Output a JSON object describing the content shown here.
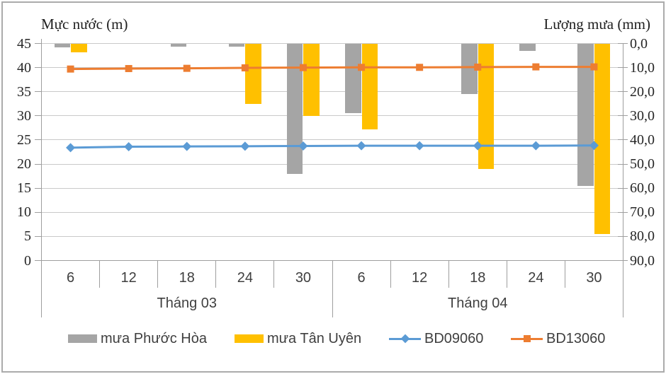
{
  "titles": {
    "left_axis": "Mực nước (m)",
    "right_axis": "Lượng mưa (mm)"
  },
  "left_axis_ticks": [
    "45",
    "40",
    "35",
    "30",
    "25",
    "20",
    "15",
    "10",
    "5",
    "0"
  ],
  "right_axis_ticks": [
    "0,0",
    "10,0",
    "20,0",
    "30,0",
    "40,0",
    "50,0",
    "60,0",
    "70,0",
    "80,0",
    "90,0"
  ],
  "colors": {
    "grid": "#C9C9C9",
    "axis": "#9E9E9E",
    "frame": "#ABABAB"
  },
  "chart_data": {
    "type": "bar+line combo, dual axis",
    "categories": [
      "6",
      "12",
      "18",
      "24",
      "30",
      "6",
      "12",
      "18",
      "24",
      "30"
    ],
    "category_groups": [
      {
        "label": "Tháng 03",
        "span": 5
      },
      {
        "label": "Tháng 04",
        "span": 5
      }
    ],
    "left_ylim": [
      0,
      45
    ],
    "left_tick_step": 5,
    "right_ylim": [
      0,
      90
    ],
    "right_tick_step": 10,
    "right_axis_inverted": true,
    "grid": true,
    "legend_position": "bottom",
    "bar_series": [
      {
        "id": "phuoc-hoa",
        "name": "mưa Phước Hòa",
        "axis": "right",
        "unit": "mm",
        "color": "#A5A5A5",
        "values": [
          1.5,
          0,
          1.2,
          1.4,
          54,
          29,
          0,
          21,
          3,
          59
        ]
      },
      {
        "id": "tan-uyen",
        "name": "mưa Tân Uyên",
        "axis": "right",
        "unit": "mm",
        "color": "#FFC000",
        "values": [
          3.8,
          0,
          0,
          25,
          30,
          35.5,
          0,
          52,
          0,
          79
        ]
      }
    ],
    "line_series": [
      {
        "id": "bd09060",
        "name": "BD09060",
        "axis": "left",
        "unit": "m",
        "color": "#5B9BD5",
        "marker": "diamond",
        "values": [
          23.4,
          23.6,
          23.65,
          23.7,
          23.75,
          23.8,
          23.8,
          23.8,
          23.8,
          23.85
        ]
      },
      {
        "id": "bd13060",
        "name": "BD13060",
        "axis": "left",
        "unit": "m",
        "color": "#ED7D31",
        "marker": "square",
        "values": [
          39.7,
          39.8,
          39.85,
          39.95,
          40.0,
          40.05,
          40.05,
          40.1,
          40.15,
          40.15
        ]
      }
    ]
  }
}
